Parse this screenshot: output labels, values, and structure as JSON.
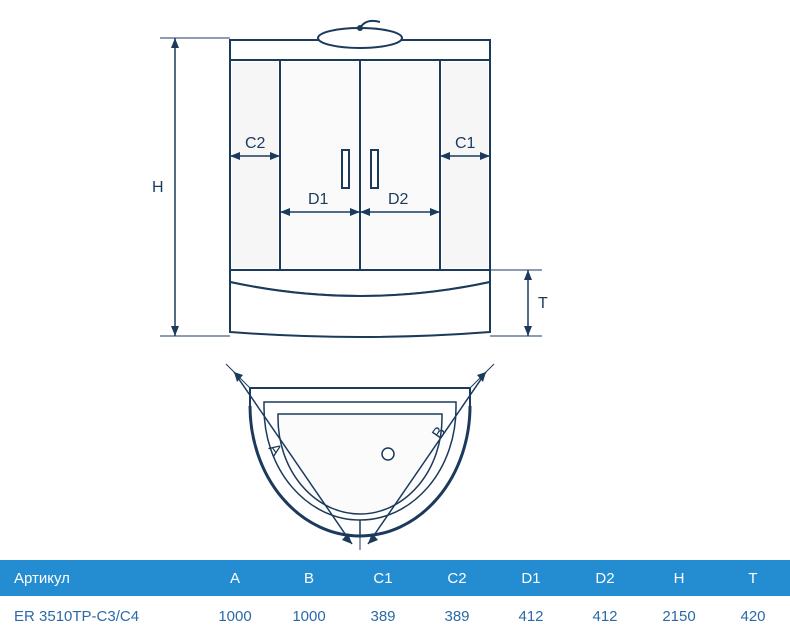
{
  "colors": {
    "header_bg": "#248dd2",
    "header_text": "#ffffff",
    "value_text": "#2a6aa8",
    "line": "#1b3a5c",
    "cabin_fill": "#ffffff",
    "glass_fill": "#f3f3f3",
    "base_fill": "#ffffff"
  },
  "labels": {
    "H": "H",
    "C1": "C1",
    "C2": "C2",
    "D1": "D1",
    "D2": "D2",
    "T": "T",
    "A": "A",
    "B": "B"
  },
  "table": {
    "headers": [
      "Артикул",
      "A",
      "B",
      "C1",
      "C2",
      "D1",
      "D2",
      "H",
      "T"
    ],
    "row": {
      "sku": "ER 3510TP-C3/C4",
      "A": "1000",
      "B": "1000",
      "C1": "389",
      "C2": "389",
      "D1": "412",
      "D2": "412",
      "H": "2150",
      "T": "420"
    }
  }
}
